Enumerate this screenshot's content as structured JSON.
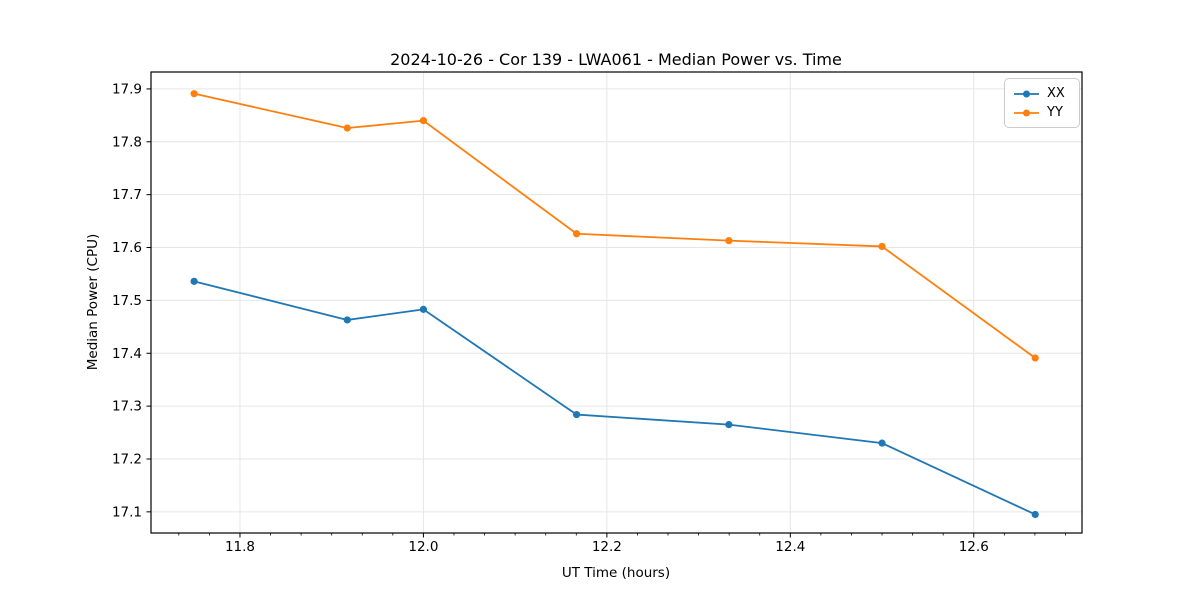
{
  "chart_data": {
    "type": "line",
    "title": "2024-10-26 - Cor 139 - LWA061 - Median Power vs. Time",
    "xlabel": "UT Time (hours)",
    "ylabel": "Median Power (CPU)",
    "x": [
      11.75,
      11.917,
      12.0,
      12.167,
      12.333,
      12.5,
      12.667
    ],
    "series": [
      {
        "name": "XX",
        "color": "#1f77b4",
        "values": [
          17.536,
          17.463,
          17.483,
          17.284,
          17.265,
          17.23,
          17.095
        ]
      },
      {
        "name": "YY",
        "color": "#ff7f0e",
        "values": [
          17.891,
          17.826,
          17.84,
          17.626,
          17.613,
          17.602,
          17.391
        ]
      }
    ],
    "xlim": [
      11.703,
      12.718
    ],
    "ylim": [
      17.06,
      17.932
    ],
    "x_major_ticks": [
      11.8,
      12.0,
      12.2,
      12.4,
      12.6
    ],
    "x_tick_labels": [
      "11.8",
      "12.0",
      "12.2",
      "12.4",
      "12.6"
    ],
    "x_minor_step": 0.0333333,
    "y_major_ticks": [
      17.1,
      17.2,
      17.3,
      17.4,
      17.5,
      17.6,
      17.7,
      17.8,
      17.9
    ],
    "y_tick_labels": [
      "17.1",
      "17.2",
      "17.3",
      "17.4",
      "17.5",
      "17.6",
      "17.7",
      "17.8",
      "17.9"
    ],
    "grid": true,
    "legend_position": "top-right",
    "marker": "circle",
    "colors": {
      "grid": "#e6e6e6",
      "spine": "#000000",
      "text": "#000000",
      "legend_border": "#cccccc"
    }
  }
}
